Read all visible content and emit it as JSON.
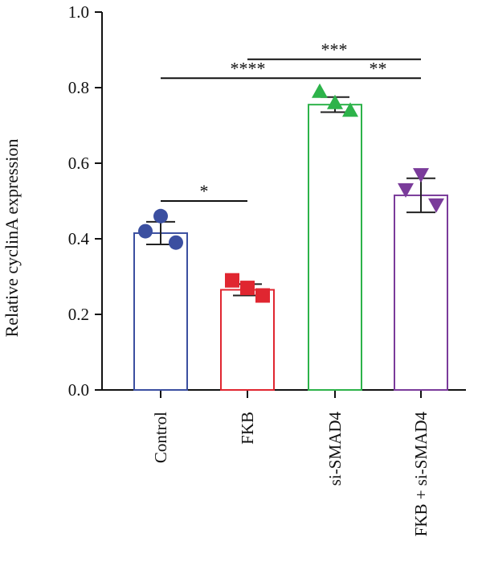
{
  "chart_data": {
    "type": "bar",
    "title": "",
    "xlabel": "",
    "ylabel": "Relative cyclinA expression",
    "ylim": [
      0.0,
      1.0
    ],
    "yticks": [
      "0.0",
      "0.2",
      "0.4",
      "0.6",
      "0.8",
      "1.0"
    ],
    "grid": false,
    "legend": "none",
    "categories": [
      "Control",
      "FKB",
      "si-SMAD4",
      "FKB + si-SMAD4"
    ],
    "values": [
      0.415,
      0.265,
      0.755,
      0.515
    ],
    "errors": [
      0.03,
      0.015,
      0.02,
      0.045
    ],
    "colors": [
      "#3b4fa0",
      "#e02630",
      "#2db34a",
      "#7a3b9a"
    ],
    "marker_shapes": [
      "circle",
      "square",
      "triangle-up",
      "triangle-down"
    ],
    "points": [
      [
        0.42,
        0.46,
        0.39
      ],
      [
        0.29,
        0.27,
        0.25
      ],
      [
        0.79,
        0.76,
        0.74
      ],
      [
        0.53,
        0.57,
        0.49
      ]
    ],
    "significance": [
      {
        "from": 0,
        "to": 1,
        "label": "*",
        "y": 0.5
      },
      {
        "from": 0,
        "to": 2,
        "label": "****",
        "y": 0.825
      },
      {
        "from": 1,
        "to": 3,
        "label": "***",
        "y": 0.875
      },
      {
        "from": 2,
        "to": 3,
        "label": "**",
        "y": 0.825
      }
    ]
  }
}
